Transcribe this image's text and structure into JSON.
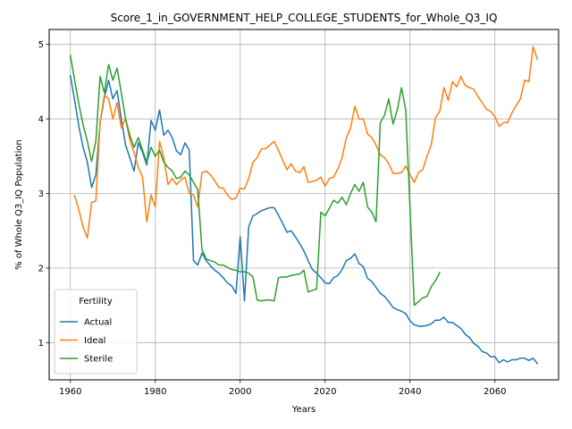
{
  "chart_data": {
    "type": "line",
    "title": "Score_1_in_GOVERNMENT_HELP_COLLEGE_STUDENTS_for_Whole_Q3_IQ",
    "xlabel": "Years",
    "ylabel": "% of Whole Q3_IQ Population",
    "xlim": [
      1955,
      2075
    ],
    "ylim": [
      0.5,
      5.2
    ],
    "xticks": [
      1960,
      1980,
      2000,
      2020,
      2040,
      2060
    ],
    "yticks": [
      1,
      2,
      3,
      4,
      5
    ],
    "grid": true,
    "legend": {
      "title": "Fertility",
      "location": "lower-left"
    },
    "series": [
      {
        "name": "Actual",
        "color": "#1f77b4",
        "x": [
          1960,
          1961,
          1962,
          1963,
          1964,
          1965,
          1966,
          1967,
          1968,
          1969,
          1970,
          1971,
          1972,
          1973,
          1974,
          1975,
          1976,
          1977,
          1978,
          1979,
          1980,
          1981,
          1982,
          1983,
          1984,
          1985,
          1986,
          1987,
          1988,
          1989,
          1990,
          1991,
          1992,
          1993,
          1994,
          1995,
          1996,
          1997,
          1998,
          1999,
          2000,
          2001,
          2002,
          2003,
          2004,
          2005,
          2006,
          2007,
          2008,
          2009,
          2010,
          2011,
          2012,
          2013,
          2014,
          2015,
          2016,
          2017,
          2018,
          2019,
          2020,
          2021,
          2022,
          2023,
          2024,
          2025,
          2026,
          2027,
          2028,
          2029,
          2030,
          2031,
          2032,
          2033,
          2034,
          2035,
          2036,
          2037,
          2038,
          2039,
          2040,
          2041,
          2042,
          2043,
          2044,
          2045,
          2046,
          2047,
          2048,
          2049,
          2050,
          2051,
          2052,
          2053,
          2054,
          2055,
          2056,
          2057,
          2058,
          2059,
          2060,
          2061,
          2062,
          2063,
          2064,
          2065,
          2066,
          2067,
          2068,
          2069,
          2070
        ],
        "values": [
          4.58,
          4.25,
          3.9,
          3.62,
          3.42,
          3.08,
          3.25,
          3.95,
          4.28,
          4.52,
          4.27,
          4.38,
          4.0,
          3.65,
          3.48,
          3.3,
          3.68,
          3.55,
          3.38,
          3.98,
          3.85,
          4.12,
          3.78,
          3.85,
          3.75,
          3.57,
          3.52,
          3.68,
          3.58,
          2.1,
          2.04,
          2.2,
          2.1,
          2.03,
          1.97,
          1.93,
          1.87,
          1.8,
          1.76,
          1.66,
          2.42,
          1.56,
          2.55,
          2.7,
          2.73,
          2.77,
          2.79,
          2.81,
          2.81,
          2.71,
          2.6,
          2.48,
          2.5,
          2.42,
          2.33,
          2.23,
          2.1,
          1.98,
          1.93,
          1.87,
          1.8,
          1.79,
          1.87,
          1.9,
          1.98,
          2.1,
          2.13,
          2.19,
          2.06,
          2.02,
          1.86,
          1.82,
          1.74,
          1.66,
          1.62,
          1.55,
          1.47,
          1.44,
          1.42,
          1.39,
          1.29,
          1.24,
          1.22,
          1.22,
          1.23,
          1.25,
          1.3,
          1.3,
          1.34,
          1.27,
          1.27,
          1.23,
          1.19,
          1.11,
          1.07,
          0.99,
          0.95,
          0.88,
          0.86,
          0.81,
          0.81,
          0.73,
          0.77,
          0.74,
          0.77,
          0.77,
          0.79,
          0.79,
          0.76,
          0.79,
          0.72
        ]
      },
      {
        "name": "Ideal",
        "color": "#ff7f0e",
        "x": [
          1961,
          1962,
          1963,
          1964,
          1965,
          1966,
          1967,
          1968,
          1969,
          1970,
          1971,
          1972,
          1973,
          1974,
          1975,
          1976,
          1977,
          1978,
          1979,
          1980,
          1981,
          1982,
          1983,
          1984,
          1985,
          1986,
          1987,
          1988,
          1989,
          1990,
          1991,
          1992,
          1993,
          1994,
          1995,
          1996,
          1997,
          1998,
          1999,
          2000,
          2001,
          2002,
          2003,
          2004,
          2005,
          2006,
          2007,
          2008,
          2009,
          2010,
          2011,
          2012,
          2013,
          2014,
          2015,
          2016,
          2017,
          2018,
          2019,
          2020,
          2021,
          2022,
          2023,
          2024,
          2025,
          2026,
          2027,
          2028,
          2029,
          2030,
          2031,
          2032,
          2033,
          2034,
          2035,
          2036,
          2037,
          2038,
          2039,
          2040,
          2041,
          2042,
          2043,
          2044,
          2045,
          2046,
          2047,
          2048,
          2049,
          2050,
          2051,
          2052,
          2053,
          2054,
          2055,
          2056,
          2057,
          2058,
          2059,
          2060,
          2061,
          2062,
          2063,
          2064,
          2065,
          2066,
          2067,
          2068,
          2069,
          2070
        ],
        "values": [
          2.97,
          2.78,
          2.55,
          2.4,
          2.88,
          2.9,
          3.95,
          4.32,
          4.27,
          4.0,
          4.22,
          3.88,
          4.0,
          3.72,
          3.55,
          3.35,
          3.22,
          2.62,
          2.98,
          2.82,
          3.7,
          3.48,
          3.12,
          3.2,
          3.12,
          3.18,
          3.22,
          3.0,
          2.98,
          2.82,
          3.28,
          3.3,
          3.25,
          3.17,
          3.08,
          3.07,
          2.98,
          2.92,
          2.94,
          3.07,
          3.06,
          3.2,
          3.42,
          3.48,
          3.6,
          3.6,
          3.65,
          3.7,
          3.58,
          3.45,
          3.32,
          3.4,
          3.3,
          3.28,
          3.36,
          3.15,
          3.16,
          3.18,
          3.22,
          3.1,
          3.2,
          3.22,
          3.33,
          3.48,
          3.75,
          3.88,
          4.17,
          4.0,
          4.0,
          3.8,
          3.75,
          3.65,
          3.52,
          3.48,
          3.4,
          3.27,
          3.27,
          3.28,
          3.37,
          3.25,
          3.15,
          3.28,
          3.32,
          3.5,
          3.65,
          4.02,
          4.1,
          4.42,
          4.25,
          4.5,
          4.43,
          4.57,
          4.45,
          4.42,
          4.4,
          4.3,
          4.22,
          4.13,
          4.1,
          4.03,
          3.9,
          3.95,
          3.95,
          4.08,
          4.18,
          4.27,
          4.52,
          4.5,
          4.97,
          4.8
        ]
      },
      {
        "name": "Sterile",
        "color": "#2ca02c",
        "x": [
          1960,
          1961,
          1962,
          1963,
          1964,
          1965,
          1966,
          1967,
          1968,
          1969,
          1970,
          1971,
          1972,
          1973,
          1974,
          1975,
          1976,
          1977,
          1978,
          1979,
          1980,
          1981,
          1982,
          1983,
          1984,
          1985,
          1986,
          1987,
          1988,
          1989,
          1990,
          1991,
          1992,
          1993,
          1994,
          1995,
          1996,
          1997,
          1998,
          1999,
          2000,
          2001,
          2002,
          2003,
          2004,
          2005,
          2006,
          2007,
          2008,
          2009,
          2010,
          2011,
          2012,
          2013,
          2014,
          2015,
          2016,
          2017,
          2018,
          2019,
          2020,
          2021,
          2022,
          2023,
          2024,
          2025,
          2026,
          2027,
          2028,
          2029,
          2030,
          2031,
          2032,
          2033,
          2034,
          2035,
          2036,
          2037,
          2038,
          2039,
          2040,
          2041,
          2042,
          2043,
          2044,
          2045,
          2046,
          2047
        ],
        "values": [
          4.85,
          4.52,
          4.2,
          3.92,
          3.7,
          3.43,
          3.7,
          4.57,
          4.35,
          4.73,
          4.52,
          4.68,
          4.35,
          4.0,
          3.78,
          3.62,
          3.75,
          3.58,
          3.42,
          3.62,
          3.5,
          3.58,
          3.42,
          3.35,
          3.3,
          3.2,
          3.22,
          3.3,
          3.25,
          3.15,
          3.05,
          2.25,
          2.12,
          2.1,
          2.08,
          2.04,
          2.04,
          2.01,
          1.98,
          1.97,
          1.95,
          1.95,
          1.93,
          1.88,
          1.57,
          1.56,
          1.57,
          1.57,
          1.56,
          1.87,
          1.88,
          1.88,
          1.9,
          1.91,
          1.92,
          1.97,
          1.68,
          1.7,
          1.72,
          2.75,
          2.7,
          2.8,
          2.91,
          2.87,
          2.95,
          2.85,
          3.0,
          3.12,
          3.03,
          3.15,
          2.82,
          2.75,
          2.62,
          3.95,
          4.05,
          4.27,
          3.93,
          4.12,
          4.42,
          4.12,
          2.8,
          1.5,
          1.55,
          1.6,
          1.62,
          1.75,
          1.83,
          1.94
        ]
      }
    ]
  }
}
